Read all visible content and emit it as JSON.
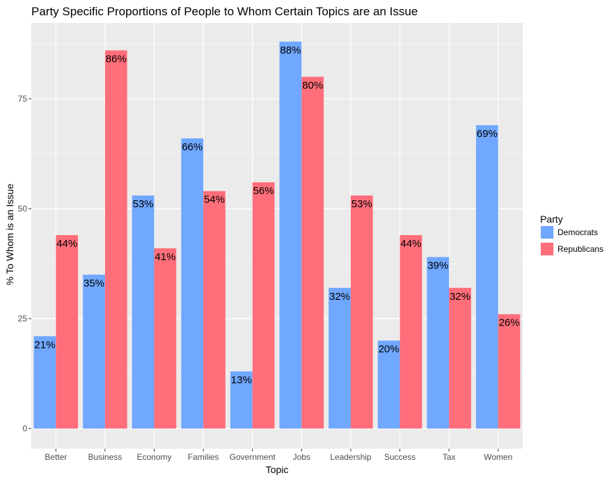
{
  "chart_data": {
    "type": "bar",
    "title": "Party Specific Proportions of People to Whom Certain Topics are an Issue",
    "xlabel": "Topic",
    "ylabel": "% To Whom is an Issue",
    "categories": [
      "Better",
      "Business",
      "Economy",
      "Families",
      "Government",
      "Jobs",
      "Leadership",
      "Success",
      "Tax",
      "Women"
    ],
    "series": [
      {
        "name": "Democrats",
        "color": "#70a7ff",
        "values": [
          21,
          35,
          53,
          66,
          13,
          88,
          32,
          20,
          39,
          69
        ],
        "labels": [
          "21%",
          "35%",
          "53%",
          "66%",
          "13%",
          "88%",
          "32%",
          "20%",
          "39%",
          "69%"
        ]
      },
      {
        "name": "Republicans",
        "color": "#ff6e7a",
        "values": [
          44,
          86,
          41,
          54,
          56,
          80,
          53,
          44,
          32,
          26
        ],
        "labels": [
          "44%",
          "86%",
          "41%",
          "54%",
          "56%",
          "80%",
          "53%",
          "44%",
          "32%",
          "26%"
        ]
      }
    ],
    "yticks": [
      0,
      25,
      50,
      75
    ],
    "ytick_labels": [
      "0",
      "25",
      "50",
      "75"
    ],
    "ylim": [
      0,
      92
    ],
    "grid": true,
    "legend": {
      "title": "Party",
      "position": "right"
    },
    "panel_background": "#ebebeb",
    "grid_color": "#ffffff"
  }
}
